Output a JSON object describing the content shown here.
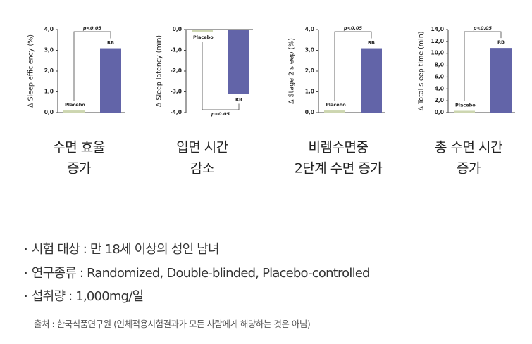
{
  "chart_data": [
    {
      "type": "bar",
      "ylabel": "Δ Sleep efficiency (%)",
      "categories": [
        "Placebo",
        "RB"
      ],
      "values": [
        0.1,
        3.1
      ],
      "colors": [
        "#cdd6b0",
        "#6264a8"
      ],
      "ylim": [
        0,
        4.0
      ],
      "yticks": [
        {
          "value": 0,
          "label": "0,0"
        },
        {
          "value": 1,
          "label": "1,0"
        },
        {
          "value": 2,
          "label": "2,0"
        },
        {
          "value": 3,
          "label": "3,0"
        },
        {
          "value": 4,
          "label": "4,0"
        }
      ],
      "annotation": "p<0.05",
      "caption": [
        "수면 효율",
        "증가"
      ]
    },
    {
      "type": "bar",
      "ylabel": "Δ Sleep latency (min)",
      "categories": [
        "Placebo",
        "RB"
      ],
      "values": [
        -0.1,
        -3.1
      ],
      "colors": [
        "#cdd6b0",
        "#6264a8"
      ],
      "ylim": [
        -4.0,
        0
      ],
      "yticks": [
        {
          "value": 0,
          "label": "0,0"
        },
        {
          "value": -1,
          "label": "-1,0"
        },
        {
          "value": -2,
          "label": "-2,0"
        },
        {
          "value": -3,
          "label": "-3,0"
        },
        {
          "value": -4,
          "label": "-4,0"
        }
      ],
      "annotation": "p<0.05",
      "caption": [
        "입면 시간",
        "감소"
      ]
    },
    {
      "type": "bar",
      "ylabel": "Δ Stage 2 sleep (%)",
      "categories": [
        "Placebo",
        "RB"
      ],
      "values": [
        0.1,
        3.1
      ],
      "colors": [
        "#cdd6b0",
        "#6264a8"
      ],
      "ylim": [
        0,
        4.0
      ],
      "yticks": [
        {
          "value": 0,
          "label": "0,0"
        },
        {
          "value": 1,
          "label": "1,0"
        },
        {
          "value": 2,
          "label": "2,0"
        },
        {
          "value": 3,
          "label": "3,0"
        },
        {
          "value": 4,
          "label": "4,0"
        }
      ],
      "annotation": "p<0.05",
      "caption": [
        "비렘수면중",
        "2단계 수면 증가"
      ]
    },
    {
      "type": "bar",
      "ylabel": "Δ Total sleep time (min)",
      "categories": [
        "Placebo",
        "RB"
      ],
      "values": [
        0.3,
        10.9
      ],
      "colors": [
        "#cdd6b0",
        "#6264a8"
      ],
      "ylim": [
        0,
        14.0
      ],
      "yticks": [
        {
          "value": 0,
          "label": "0,0"
        },
        {
          "value": 2,
          "label": "2,0"
        },
        {
          "value": 4,
          "label": "4,0"
        },
        {
          "value": 6,
          "label": "6,0"
        },
        {
          "value": 8,
          "label": "8,0"
        },
        {
          "value": 10,
          "label": "10,0"
        },
        {
          "value": 12,
          "label": "12,0"
        },
        {
          "value": 14,
          "label": "14,0"
        }
      ],
      "annotation": "p<0.05",
      "caption": [
        "총 수면 시간",
        "증가"
      ]
    }
  ],
  "notes": {
    "items": [
      "시험 대상 : 만 18세 이상의 성인 남녀",
      "연구종류 : Randomized, Double-blinded, Placebo-controlled",
      "섭취량 : 1,000mg/일"
    ],
    "source": "출처 : 한국식품연구원 (인체적용시험결과가 모든 사람에게 해당하는 것은 아님)"
  }
}
